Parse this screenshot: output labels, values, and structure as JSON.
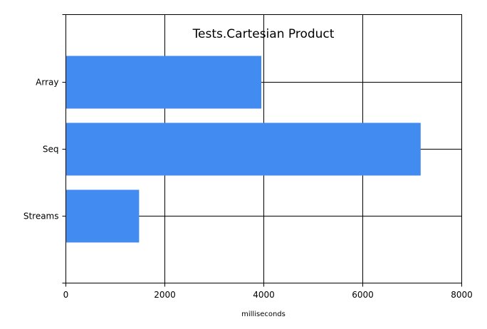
{
  "chart_data": {
    "type": "bar",
    "orientation": "horizontal",
    "title": "Tests.Cartesian Product",
    "xlabel": "milliseconds",
    "ylabel": "",
    "categories": [
      "Array",
      "Seq",
      "Streams"
    ],
    "values": [
      3950,
      7170,
      1480
    ],
    "xlim": [
      0,
      8000
    ],
    "xticks": [
      "0",
      "2000",
      "4000",
      "6000",
      "8000"
    ],
    "grid": true,
    "bar_color": "#428bf0"
  }
}
